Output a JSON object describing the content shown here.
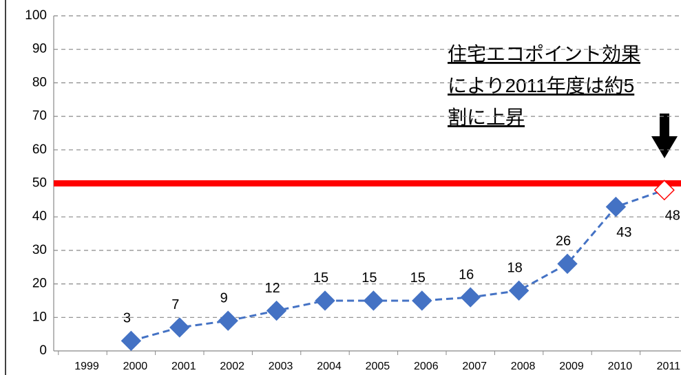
{
  "chart_data": {
    "type": "line",
    "categories": [
      "1999",
      "2000",
      "2001",
      "2002",
      "2003",
      "2004",
      "2005",
      "2006",
      "2007",
      "2008",
      "2009",
      "2010",
      "2011"
    ],
    "series": [
      {
        "color": "#4472c4",
        "highlight_color": "#ff0000",
        "values": [
          null,
          3,
          7,
          9,
          12,
          15,
          15,
          15,
          16,
          18,
          26,
          43,
          48
        ]
      }
    ],
    "reference_line": {
      "value": 50,
      "color": "#ff0000"
    },
    "annotation": [
      "住宅エコポイント効果",
      "により2011年度は約5",
      "割に上昇"
    ],
    "ylim": [
      0,
      100
    ],
    "yticks": [
      0,
      10,
      20,
      30,
      40,
      50,
      60,
      70,
      80,
      90,
      100
    ],
    "grid": true
  }
}
